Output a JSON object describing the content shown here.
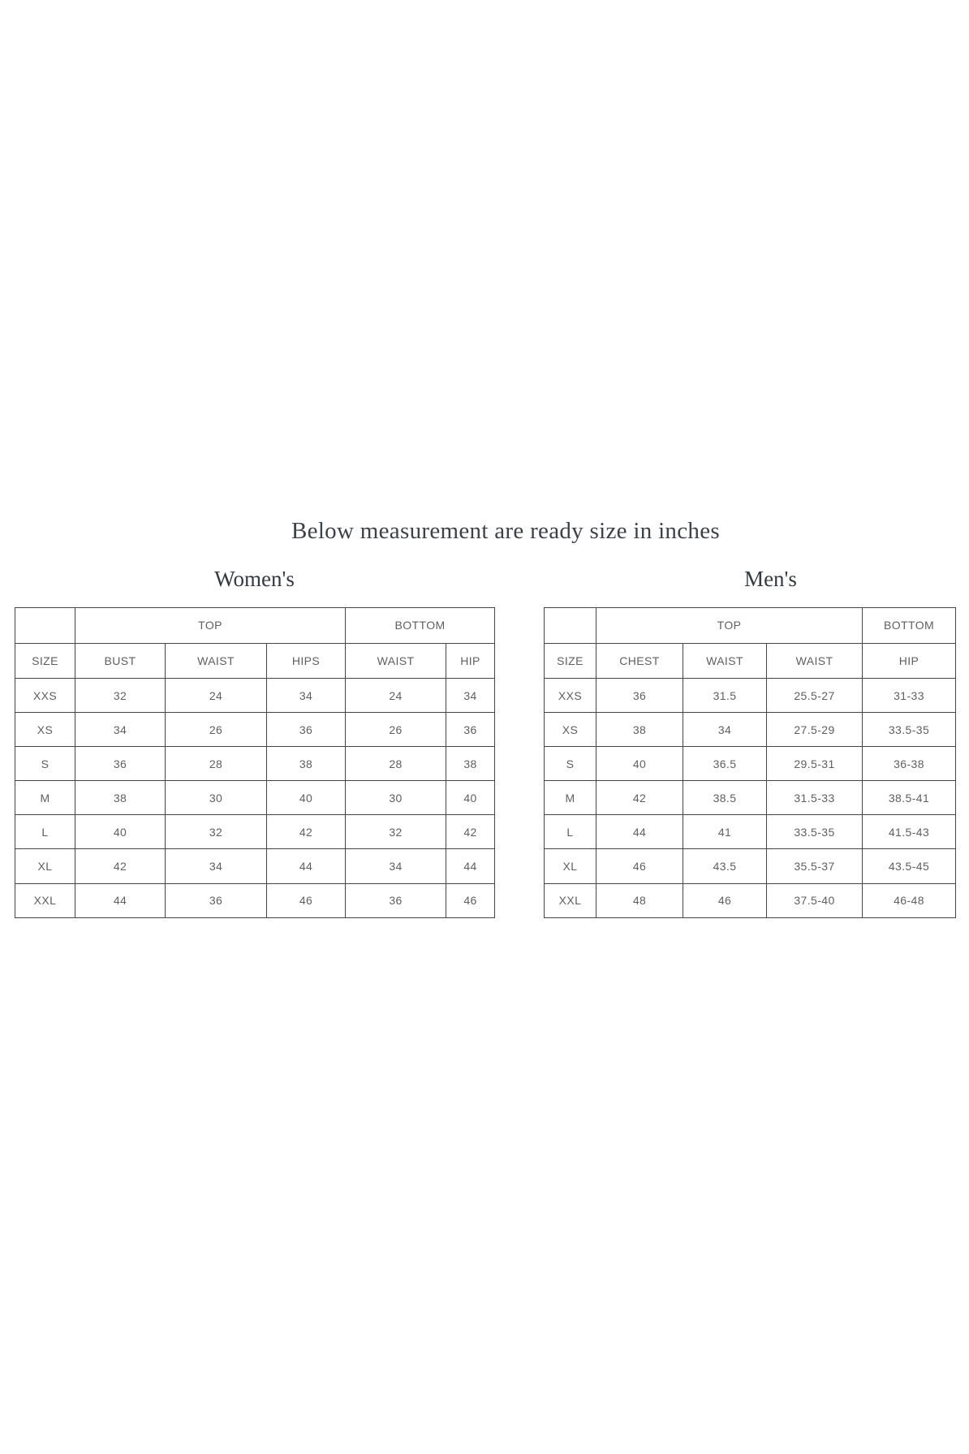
{
  "page": {
    "title": "Below measurement are ready size in inches"
  },
  "womens_table": {
    "title": "Women's",
    "section_headers": {
      "top": "TOP",
      "bottom": "BOTTOM"
    },
    "columns": [
      "SIZE",
      "BUST",
      "WAIST",
      "HIPS",
      "WAIST",
      "HIP"
    ],
    "rows": [
      [
        "XXS",
        "32",
        "24",
        "34",
        "24",
        "34"
      ],
      [
        "XS",
        "34",
        "26",
        "36",
        "26",
        "36"
      ],
      [
        "S",
        "36",
        "28",
        "38",
        "28",
        "38"
      ],
      [
        "M",
        "38",
        "30",
        "40",
        "30",
        "40"
      ],
      [
        "L",
        "40",
        "32",
        "42",
        "32",
        "42"
      ],
      [
        "XL",
        "42",
        "34",
        "44",
        "34",
        "44"
      ],
      [
        "XXL",
        "44",
        "36",
        "46",
        "36",
        "46"
      ]
    ]
  },
  "mens_table": {
    "title": "Men's",
    "section_headers": {
      "top": "TOP",
      "bottom": "BOTTOM"
    },
    "columns": [
      "SIZE",
      "CHEST",
      "WAIST",
      "WAIST",
      "HIP"
    ],
    "rows": [
      [
        "XXS",
        "36",
        "31.5",
        "25.5-27",
        "31-33"
      ],
      [
        "XS",
        "38",
        "34",
        "27.5-29",
        "33.5-35"
      ],
      [
        "S",
        "40",
        "36.5",
        "29.5-31",
        "36-38"
      ],
      [
        "M",
        "42",
        "38.5",
        "31.5-33",
        "38.5-41"
      ],
      [
        "L",
        "44",
        "41",
        "33.5-35",
        "41.5-43"
      ],
      [
        "XL",
        "46",
        "43.5",
        "35.5-37",
        "43.5-45"
      ],
      [
        "XXL",
        "48",
        "46",
        "37.5-40",
        "46-48"
      ]
    ]
  },
  "colors": {
    "background": "#ffffff",
    "heading_text": "#3d4249",
    "table_text": "#5f5f5f",
    "table_border": "#454545"
  }
}
